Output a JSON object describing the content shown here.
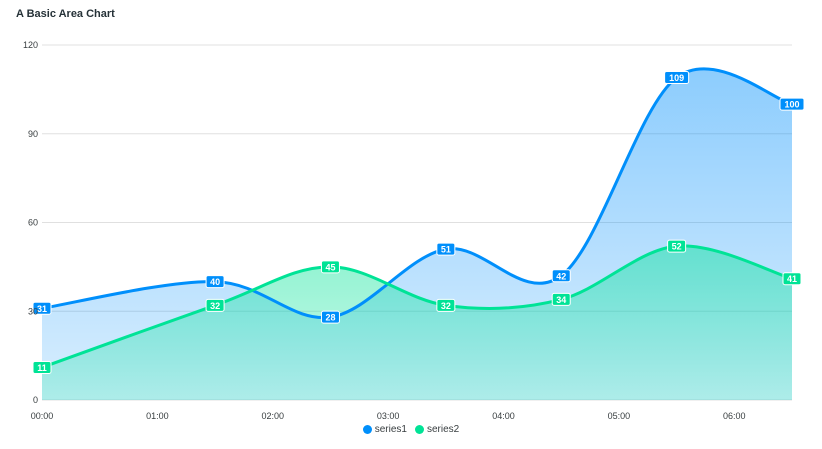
{
  "chart_data": {
    "type": "area",
    "title": "A Basic Area Chart",
    "categories": [
      "00:00",
      "01:00",
      "02:00",
      "03:00",
      "04:00",
      "05:00",
      "06:00"
    ],
    "x": [
      0,
      0.5,
      1,
      1.5,
      2,
      2.5,
      3,
      3.5,
      4,
      4.5,
      5,
      5.5,
      6,
      6.5
    ],
    "series": [
      {
        "name": "series1",
        "color": "#008FFB",
        "x": [
          0,
          1.5,
          2.5,
          3.5,
          4.5,
          5.5,
          6.5
        ],
        "values": [
          31,
          40,
          28,
          51,
          42,
          109,
          100
        ]
      },
      {
        "name": "series2",
        "color": "#00E396",
        "x": [
          0,
          1.5,
          2.5,
          3.5,
          4.5,
          5.5,
          6.5
        ],
        "values": [
          11,
          32,
          45,
          32,
          34,
          52,
          41
        ]
      }
    ],
    "yticks": [
      0,
      30,
      60,
      90,
      120
    ],
    "ylim": [
      0,
      120
    ],
    "xlim": [
      0,
      6.5
    ],
    "grid": true,
    "legend_position": "bottom",
    "data_labels": true
  }
}
